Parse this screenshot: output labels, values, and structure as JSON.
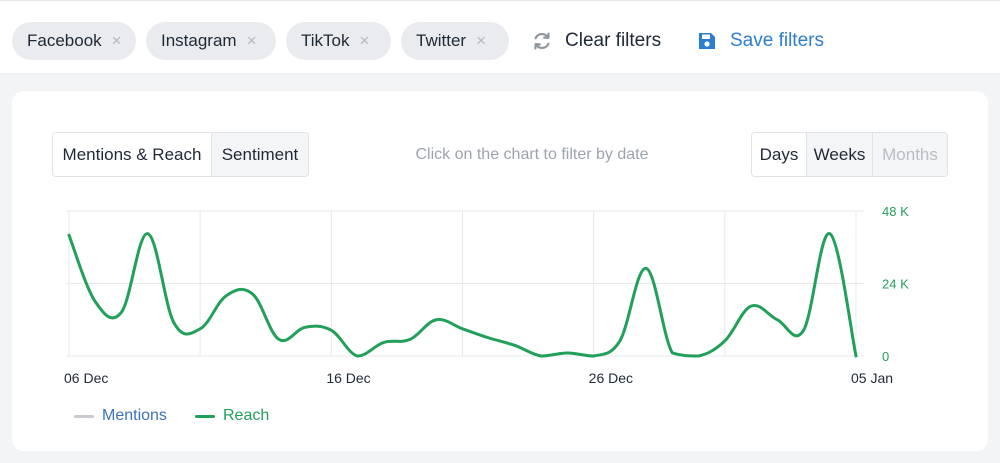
{
  "filters": {
    "chips": [
      {
        "label": "Facebook",
        "remove": "×"
      },
      {
        "label": "Instagram",
        "remove": "×"
      },
      {
        "label": "TikTok",
        "remove": "×"
      },
      {
        "label": "Twitter",
        "remove": "×"
      }
    ],
    "clear_label": "Clear filters",
    "save_label": "Save filters"
  },
  "tabs": {
    "metric": [
      "Mentions & Reach",
      "Sentiment"
    ],
    "active_metric": "Mentions & Reach",
    "period": [
      "Days",
      "Weeks",
      "Months"
    ],
    "active_period": "Days",
    "disabled_period": "Months"
  },
  "hint": "Click on the chart to filter by date",
  "colors": {
    "reach": "#22a05a",
    "mentions": "#c8cbd0",
    "accent_blue": "#2d7dd2",
    "grid": "#e6e8eb"
  },
  "chart_data": {
    "type": "line",
    "x_tick_labels": [
      "06 Dec",
      "16 Dec",
      "26 Dec",
      "05 Jan"
    ],
    "y_tick_labels": [
      "48 K",
      "24 K",
      "0"
    ],
    "ylim": [
      0,
      48000
    ],
    "grid": true,
    "legend_position": "bottom-left",
    "legend": [
      "Mentions",
      "Reach"
    ],
    "x": [
      "06 Dec",
      "07 Dec",
      "08 Dec",
      "09 Dec",
      "10 Dec",
      "11 Dec",
      "12 Dec",
      "13 Dec",
      "14 Dec",
      "15 Dec",
      "16 Dec",
      "17 Dec",
      "18 Dec",
      "19 Dec",
      "20 Dec",
      "21 Dec",
      "22 Dec",
      "23 Dec",
      "24 Dec",
      "25 Dec",
      "26 Dec",
      "27 Dec",
      "28 Dec",
      "29 Dec",
      "30 Dec",
      "31 Dec",
      "01 Jan",
      "02 Jan",
      "03 Jan",
      "04 Jan",
      "05 Jan"
    ],
    "series": [
      {
        "name": "Reach",
        "values": [
          40000,
          18000,
          14500,
          40500,
          11000,
          9000,
          20000,
          20500,
          5500,
          9500,
          8500,
          0,
          4500,
          5500,
          12000,
          9000,
          6000,
          3500,
          0,
          1000,
          0,
          5000,
          29000,
          1000,
          0,
          5000,
          16500,
          12000,
          8500,
          40500,
          0
        ]
      }
    ]
  }
}
